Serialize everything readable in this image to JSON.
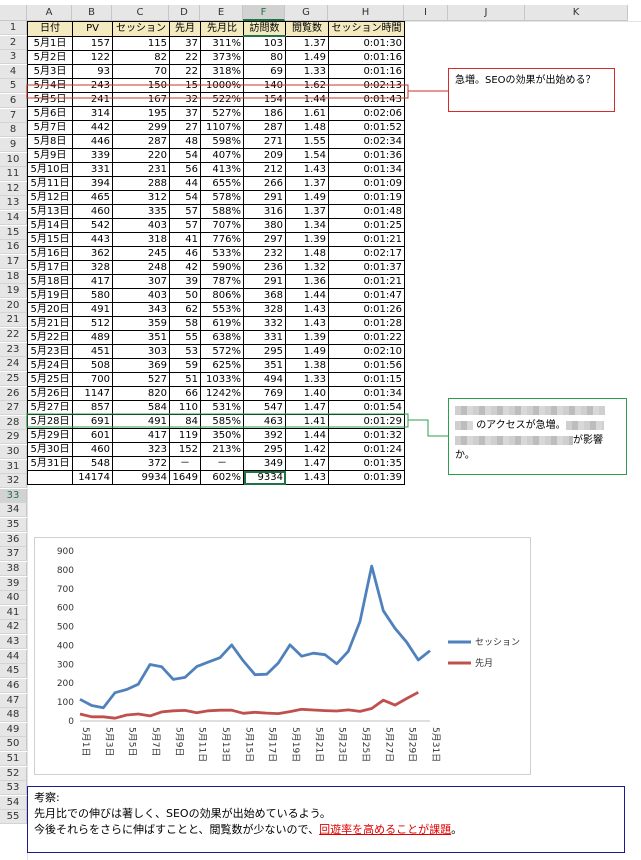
{
  "columns": [
    "A",
    "B",
    "C",
    "D",
    "E",
    "F",
    "G",
    "H",
    "I",
    "J",
    "K"
  ],
  "rows": [
    "1",
    "2",
    "3",
    "4",
    "5",
    "6",
    "7",
    "8",
    "9",
    "10",
    "11",
    "12",
    "13",
    "14",
    "15",
    "16",
    "17",
    "18",
    "19",
    "20",
    "21",
    "22",
    "23",
    "24",
    "25",
    "26",
    "27",
    "28",
    "29",
    "30",
    "31",
    "32",
    "33",
    "34",
    "35",
    "36",
    "37",
    "38",
    "39",
    "40",
    "41",
    "42",
    "43",
    "44",
    "45",
    "46",
    "47",
    "48",
    "49",
    "50",
    "51",
    "52",
    "53",
    "54",
    "55"
  ],
  "table": {
    "headers": [
      "日付",
      "PV",
      "セッション",
      "先月",
      "先月比",
      "訪問数",
      "閲覧数",
      "セッション時間"
    ],
    "rows": [
      [
        "5月1日",
        "157",
        "115",
        "37",
        "311%",
        "103",
        "1.37",
        "0:01:30"
      ],
      [
        "5月2日",
        "122",
        "82",
        "22",
        "373%",
        "80",
        "1.49",
        "0:01:16"
      ],
      [
        "5月3日",
        "93",
        "70",
        "22",
        "318%",
        "69",
        "1.33",
        "0:01:16"
      ],
      [
        "5月4日",
        "243",
        "150",
        "15",
        "1000%",
        "140",
        "1.62",
        "0:02:13"
      ],
      [
        "5月5日",
        "241",
        "167",
        "32",
        "522%",
        "154",
        "1.44",
        "0:01:43"
      ],
      [
        "5月6日",
        "314",
        "195",
        "37",
        "527%",
        "186",
        "1.61",
        "0:02:06"
      ],
      [
        "5月7日",
        "442",
        "299",
        "27",
        "1107%",
        "287",
        "1.48",
        "0:01:52"
      ],
      [
        "5月8日",
        "446",
        "287",
        "48",
        "598%",
        "271",
        "1.55",
        "0:02:34"
      ],
      [
        "5月9日",
        "339",
        "220",
        "54",
        "407%",
        "209",
        "1.54",
        "0:01:36"
      ],
      [
        "5月10日",
        "331",
        "231",
        "56",
        "413%",
        "212",
        "1.43",
        "0:01:34"
      ],
      [
        "5月11日",
        "394",
        "288",
        "44",
        "655%",
        "266",
        "1.37",
        "0:01:09"
      ],
      [
        "5月12日",
        "465",
        "312",
        "54",
        "578%",
        "291",
        "1.49",
        "0:01:19"
      ],
      [
        "5月13日",
        "460",
        "335",
        "57",
        "588%",
        "316",
        "1.37",
        "0:01:48"
      ],
      [
        "5月14日",
        "542",
        "403",
        "57",
        "707%",
        "380",
        "1.34",
        "0:01:25"
      ],
      [
        "5月15日",
        "443",
        "318",
        "41",
        "776%",
        "297",
        "1.39",
        "0:01:21"
      ],
      [
        "5月16日",
        "362",
        "245",
        "46",
        "533%",
        "232",
        "1.48",
        "0:02:17"
      ],
      [
        "5月17日",
        "328",
        "248",
        "42",
        "590%",
        "236",
        "1.32",
        "0:01:37"
      ],
      [
        "5月18日",
        "417",
        "307",
        "39",
        "787%",
        "291",
        "1.36",
        "0:01:21"
      ],
      [
        "5月19日",
        "580",
        "403",
        "50",
        "806%",
        "368",
        "1.44",
        "0:01:47"
      ],
      [
        "5月20日",
        "491",
        "343",
        "62",
        "553%",
        "328",
        "1.43",
        "0:01:26"
      ],
      [
        "5月21日",
        "512",
        "359",
        "58",
        "619%",
        "332",
        "1.43",
        "0:01:28"
      ],
      [
        "5月22日",
        "489",
        "351",
        "55",
        "638%",
        "331",
        "1.39",
        "0:01:22"
      ],
      [
        "5月23日",
        "451",
        "303",
        "53",
        "572%",
        "295",
        "1.49",
        "0:02:10"
      ],
      [
        "5月24日",
        "508",
        "369",
        "59",
        "625%",
        "351",
        "1.38",
        "0:01:56"
      ],
      [
        "5月25日",
        "700",
        "527",
        "51",
        "1033%",
        "494",
        "1.33",
        "0:01:15"
      ],
      [
        "5月26日",
        "1147",
        "820",
        "66",
        "1242%",
        "769",
        "1.40",
        "0:01:34"
      ],
      [
        "5月27日",
        "857",
        "584",
        "110",
        "531%",
        "547",
        "1.47",
        "0:01:54"
      ],
      [
        "5月28日",
        "691",
        "491",
        "84",
        "585%",
        "463",
        "1.41",
        "0:01:29"
      ],
      [
        "5月29日",
        "601",
        "417",
        "119",
        "350%",
        "392",
        "1.44",
        "0:01:32"
      ],
      [
        "5月30日",
        "460",
        "323",
        "152",
        "213%",
        "295",
        "1.42",
        "0:01:24"
      ],
      [
        "5月31日",
        "548",
        "372",
        "－",
        "－",
        "349",
        "1.47",
        "0:01:35"
      ],
      [
        "",
        "14174",
        "9934",
        "1649",
        "602%",
        "9334",
        "1.43",
        "0:01:39"
      ]
    ]
  },
  "callouts": {
    "c1": "急増。SEOの効果が出始める？",
    "c2_line2": "のアクセスが急増。",
    "c2_line2b": "が影響",
    "c2_line3": "か。"
  },
  "chart_data": {
    "type": "line",
    "categories": [
      "5月1日",
      "5月2日",
      "5月3日",
      "5月4日",
      "5月5日",
      "5月6日",
      "5月7日",
      "5月8日",
      "5月9日",
      "5月10日",
      "5月11日",
      "5月12日",
      "5月13日",
      "5月14日",
      "5月15日",
      "5月16日",
      "5月17日",
      "5月18日",
      "5月19日",
      "5月20日",
      "5月21日",
      "5月22日",
      "5月23日",
      "5月24日",
      "5月25日",
      "5月26日",
      "5月27日",
      "5月28日",
      "5月29日",
      "5月30日",
      "5月31日"
    ],
    "tick_labels": [
      "5月1日",
      "5月3日",
      "5月5日",
      "5月7日",
      "5月9日",
      "5月11日",
      "5月13日",
      "5月15日",
      "5月17日",
      "5月19日",
      "5月21日",
      "5月23日",
      "5月25日",
      "5月27日",
      "5月29日",
      "5月31日"
    ],
    "series": [
      {
        "name": "セッション",
        "color": "#4f81bd",
        "values": [
          115,
          82,
          70,
          150,
          167,
          195,
          299,
          287,
          220,
          231,
          288,
          312,
          335,
          403,
          318,
          245,
          248,
          307,
          403,
          343,
          359,
          351,
          303,
          369,
          527,
          820,
          584,
          491,
          417,
          323,
          372
        ]
      },
      {
        "name": "先月",
        "color": "#c0504d",
        "values": [
          37,
          22,
          22,
          15,
          32,
          37,
          27,
          48,
          54,
          56,
          44,
          54,
          57,
          57,
          41,
          46,
          42,
          39,
          50,
          62,
          58,
          55,
          53,
          59,
          51,
          66,
          110,
          84,
          119,
          152,
          null
        ]
      }
    ],
    "ylim": [
      0,
      900
    ],
    "yticks": [
      "0",
      "100",
      "200",
      "300",
      "400",
      "500",
      "600",
      "700",
      "800",
      "900"
    ],
    "grid": false,
    "legend": "right"
  },
  "note": {
    "title": "考察:",
    "line1": "先月比での伸びは著しく、SEOの効果が出始めているよう。",
    "line2a": "今後それらをさらに伸ばすことと、閲覧数が少ないので、",
    "line2b": "回遊率を高めることが課題",
    "line2c": "。"
  }
}
